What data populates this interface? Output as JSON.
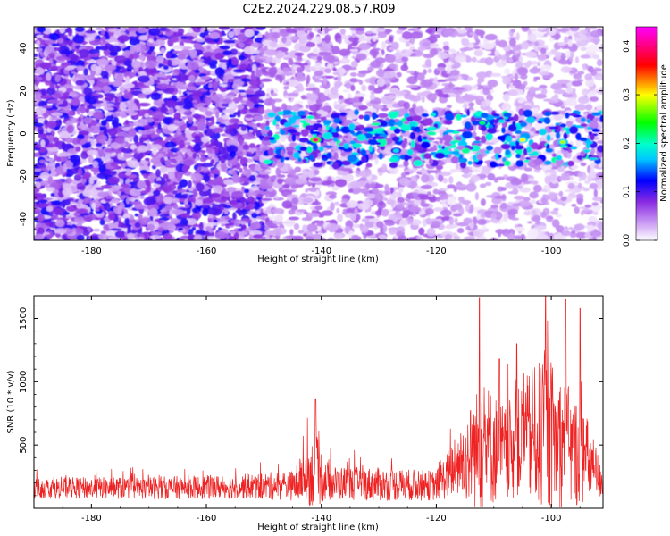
{
  "figure": {
    "title": "C2E2.2024.229.08.57.R09"
  },
  "chart_data": [
    {
      "type": "heatmap",
      "xlabel": "Height of straight line (km)",
      "ylabel": "Frequency (Hz)",
      "xlim": [
        -190,
        -91
      ],
      "ylim": [
        -50,
        50
      ],
      "xticks": [
        -180,
        -160,
        -140,
        -120,
        -100
      ],
      "yticks": [
        -40,
        -20,
        0,
        20,
        40
      ],
      "colorbar": {
        "label": "Normalized spectral amplitude",
        "range": [
          0,
          0.44
        ],
        "ticks": [
          0.0,
          0.1,
          0.2,
          0.3,
          0.4
        ],
        "colormap": [
          "#ffffff",
          "#d8b4f8",
          "#8a2be2",
          "#0000ff",
          "#00ffff",
          "#00ff00",
          "#ffff00",
          "#ff0000",
          "#ff00ff"
        ]
      },
      "regions": [
        {
          "x_range": [
            -190,
            -150
          ],
          "f_range": [
            -50,
            50
          ],
          "level": 0.07
        },
        {
          "x_range": [
            -150,
            -118
          ],
          "f_range": [
            -50,
            50
          ],
          "level": 0.04
        },
        {
          "x_range": [
            -118,
            -91
          ],
          "f_range": [
            -50,
            50
          ],
          "level": 0.03
        }
      ],
      "signal_band": {
        "x_range": [
          -150,
          -91
        ],
        "f_range": [
          -15,
          10
        ],
        "level": 0.15
      },
      "peaks": [
        {
          "x": -141,
          "f": -3,
          "value": 0.4
        },
        {
          "x": -105,
          "f": -3,
          "value": 0.3
        },
        {
          "x": -98,
          "f": -4,
          "value": 0.28
        },
        {
          "x": -112,
          "f": 5,
          "value": 0.22
        },
        {
          "x": -127,
          "f": -8,
          "value": 0.18
        }
      ]
    },
    {
      "type": "line",
      "xlabel": "Height of straight line (km)",
      "ylabel": "SNR (10 * v/v)",
      "xlim": [
        -190,
        -91
      ],
      "ylim": [
        0,
        1680
      ],
      "xticks": [
        -180,
        -160,
        -140,
        -120,
        -100
      ],
      "yticks": [
        500,
        1000,
        1500
      ],
      "series": [
        {
          "color": "#ee2222",
          "envelope": [
            {
              "x": -190,
              "base": 160,
              "amp": 140
            },
            {
              "x": -170,
              "base": 160,
              "amp": 150
            },
            {
              "x": -155,
              "base": 170,
              "amp": 160
            },
            {
              "x": -145,
              "base": 180,
              "amp": 200
            },
            {
              "x": -141,
              "base": 300,
              "amp": 500
            },
            {
              "x": -139,
              "base": 200,
              "amp": 230
            },
            {
              "x": -130,
              "base": 190,
              "amp": 220
            },
            {
              "x": -120,
              "base": 180,
              "amp": 200
            },
            {
              "x": -116,
              "base": 350,
              "amp": 450
            },
            {
              "x": -112,
              "base": 500,
              "amp": 900
            },
            {
              "x": -108,
              "base": 450,
              "amp": 600
            },
            {
              "x": -104,
              "base": 550,
              "amp": 850
            },
            {
              "x": -101,
              "base": 600,
              "amp": 1050
            },
            {
              "x": -98,
              "base": 500,
              "amp": 900
            },
            {
              "x": -94,
              "base": 400,
              "amp": 600
            },
            {
              "x": -91,
              "base": 200,
              "amp": 200
            }
          ],
          "peaks": [
            {
              "x": -141,
              "y": 860
            },
            {
              "x": -112.5,
              "y": 1660
            },
            {
              "x": -101,
              "y": 1680
            },
            {
              "x": -97.5,
              "y": 1650
            },
            {
              "x": -106,
              "y": 1300
            },
            {
              "x": -95,
              "y": 1580
            },
            {
              "x": -109,
              "y": 1180
            }
          ]
        }
      ]
    }
  ]
}
